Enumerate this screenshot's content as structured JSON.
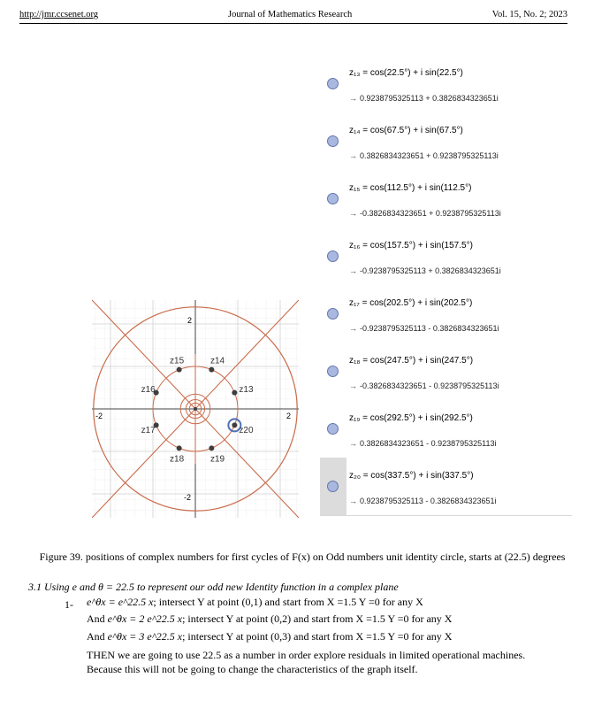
{
  "header": {
    "url": "http://jmr.ccsenet.org",
    "journal": "Journal of Mathematics Research",
    "volume": "Vol. 15, No. 2; 2023"
  },
  "algebra_rows": [
    {
      "expr": "z₁₃ = cos(22.5°) + i sin(22.5°)",
      "result": "0.9238795325113 + 0.3826834323651i"
    },
    {
      "expr": "z₁₄ = cos(67.5°) + i sin(67.5°)",
      "result": "0.3826834323651 + 0.9238795325113i"
    },
    {
      "expr": "z₁₅ = cos(112.5°) + i sin(112.5°)",
      "result": "-0.3826834323651 + 0.9238795325113i"
    },
    {
      "expr": "z₁₆ = cos(157.5°) + i sin(157.5°)",
      "result": "-0.9238795325113 + 0.3826834323651i"
    },
    {
      "expr": "z₁₇ = cos(202.5°) + i sin(202.5°)",
      "result": "-0.9238795325113 - 0.3826834323651i"
    },
    {
      "expr": "z₁₈ = cos(247.5°) + i sin(247.5°)",
      "result": "-0.3826834323651 - 0.9238795325113i"
    },
    {
      "expr": "z₁₉ = cos(292.5°) + i sin(292.5°)",
      "result": "0.3826834323651 - 0.9238795325113i"
    },
    {
      "expr": "z₂₀ = cos(337.5°) + i sin(337.5°)",
      "result": "0.9238795325113 - 0.3826834323651i"
    }
  ],
  "graph": {
    "tick_labels": {
      "x_neg": "-2",
      "x_pos": "2",
      "y_pos": "2",
      "y_neg": "-2"
    },
    "point_labels": [
      "z13",
      "z14",
      "z15",
      "z16",
      "z17",
      "z18",
      "z19",
      "z20"
    ],
    "line_color": "#c96b4a",
    "point_color": "#3d3d3d",
    "highlight_color": "#4f6fb8"
  },
  "caption": "Figure 39. positions of complex numbers for first cycles of F(x) on Odd numbers unit identity circle, starts at (22.5) degrees",
  "section": "3.1  Using e and θ = 22.5 to represent our odd new Identity function in a complex plane",
  "body": {
    "item_number": "1-",
    "line1_formula": "e^θx = e^22.5 x",
    "line1_text": "; intersect Y at point (0,1) and start from X =1.5 Y =0 for any X",
    "line2_prefix": "And",
    "line2_formula": "e^θx = 2 e^22.5 x",
    "line2_text": "; intersect Y at point (0,2) and start from X =1.5 Y =0 for any X",
    "line3_prefix": "And",
    "line3_formula": "e^θx = 3 e^22.5 x",
    "line3_text": "; intersect Y at point (0,3) and start from X =1.5 Y =0 for any X",
    "para1": "THEN we are going to use 22.5 as a number in order explore residuals in limited operational machines.",
    "para2": "Because this will not be going to change the characteristics of the graph itself."
  }
}
